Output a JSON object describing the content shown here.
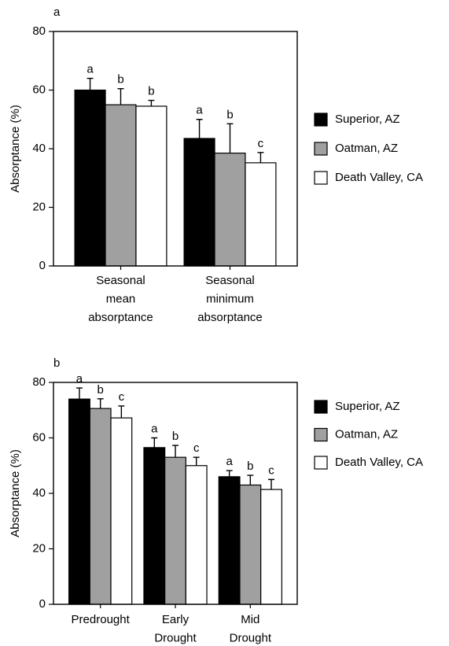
{
  "chart_data": [
    {
      "type": "bar",
      "panel_label": "a",
      "ylabel": "Absorptance (%)",
      "categories": [
        [
          "Seasonal",
          "mean",
          "absorptance"
        ],
        [
          "Seasonal",
          "minimum",
          "absorptance"
        ]
      ],
      "series": [
        {
          "name": "Superior, AZ",
          "color": "#000000",
          "values": [
            60,
            43.5
          ],
          "errors": [
            4,
            6.5
          ],
          "letters": [
            "a",
            "a"
          ]
        },
        {
          "name": "Oatman, AZ",
          "color": "#a0a0a0",
          "values": [
            55,
            38.5
          ],
          "errors": [
            5.5,
            10
          ],
          "letters": [
            "b",
            "b"
          ]
        },
        {
          "name": "Death Valley, CA",
          "color": "#ffffff",
          "values": [
            54.5,
            35.2
          ],
          "errors": [
            2,
            3.5
          ],
          "letters": [
            "b",
            "c"
          ]
        }
      ],
      "ylim": [
        0,
        80
      ],
      "yticks": [
        0,
        20,
        40,
        60,
        80
      ]
    },
    {
      "type": "bar",
      "panel_label": "b",
      "ylabel": "Absorptance (%)",
      "categories": [
        [
          "Predrought"
        ],
        [
          "Early",
          "Drought"
        ],
        [
          "Mid",
          "Drought"
        ]
      ],
      "series": [
        {
          "name": "Superior, AZ",
          "color": "#000000",
          "values": [
            74,
            56.5,
            46
          ],
          "errors": [
            4,
            3.5,
            2.2
          ],
          "letters": [
            "a",
            "a",
            "a"
          ]
        },
        {
          "name": "Oatman, AZ",
          "color": "#a0a0a0",
          "values": [
            70.6,
            53,
            43
          ],
          "errors": [
            3.5,
            4.3,
            3.5
          ],
          "letters": [
            "b",
            "b",
            "b"
          ]
        },
        {
          "name": "Death Valley, CA",
          "color": "#ffffff",
          "values": [
            67.2,
            50,
            41.4
          ],
          "errors": [
            4.3,
            3,
            3.6
          ],
          "letters": [
            "c",
            "c",
            "c"
          ]
        }
      ],
      "ylim": [
        0,
        80
      ],
      "yticks": [
        0,
        20,
        40,
        60,
        80
      ]
    }
  ]
}
